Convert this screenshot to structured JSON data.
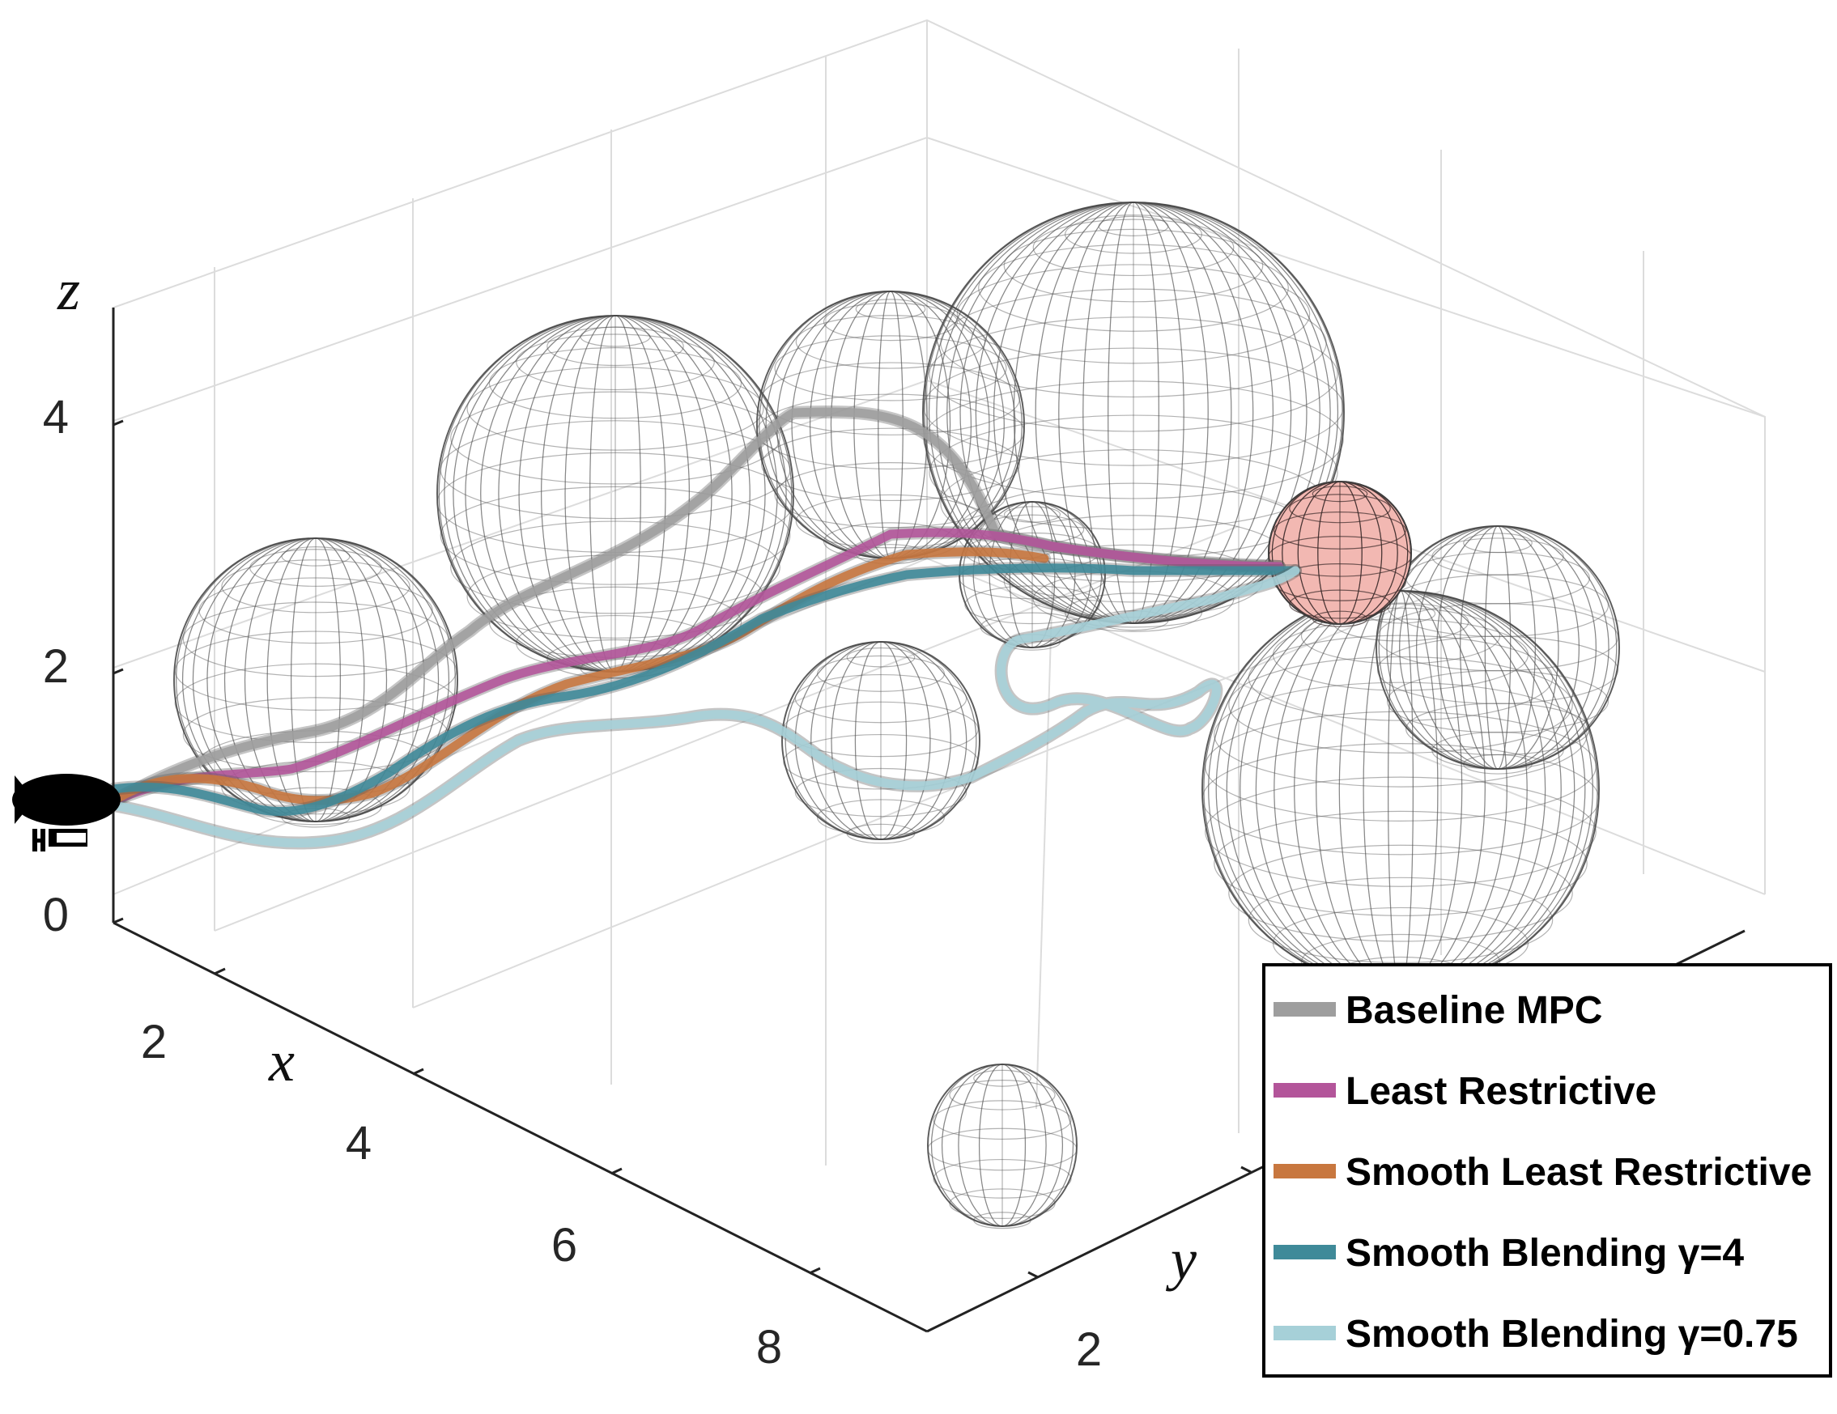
{
  "chart_data": {
    "type": "line",
    "subtype": "3d-trajectories-with-spherical-obstacles",
    "axes": {
      "x": {
        "label": "x",
        "ticks": [
          "2",
          "4",
          "6",
          "8"
        ]
      },
      "y": {
        "label": "y",
        "ticks": [
          "2"
        ]
      },
      "z": {
        "label": "z",
        "ticks": [
          "0",
          "2",
          "4"
        ]
      }
    },
    "grid": true,
    "legend_position": "bottom-right",
    "series": [
      {
        "name": "Baseline MPC",
        "color": "#9e9e9e"
      },
      {
        "name": "Least Restrictive",
        "color": "#b3559a"
      },
      {
        "name": "Smooth Least Restrictive",
        "color": "#c8773f"
      },
      {
        "name": "Smooth Blending  γ=4",
        "color": "#3f8a99"
      },
      {
        "name": "Smooth Blending  γ=0.75",
        "color": "#a6d0d8"
      }
    ],
    "obstacles": {
      "type": "sphere",
      "count": 10,
      "target_color": "#f2b8b2"
    },
    "start_marker": "blimp-icon"
  }
}
